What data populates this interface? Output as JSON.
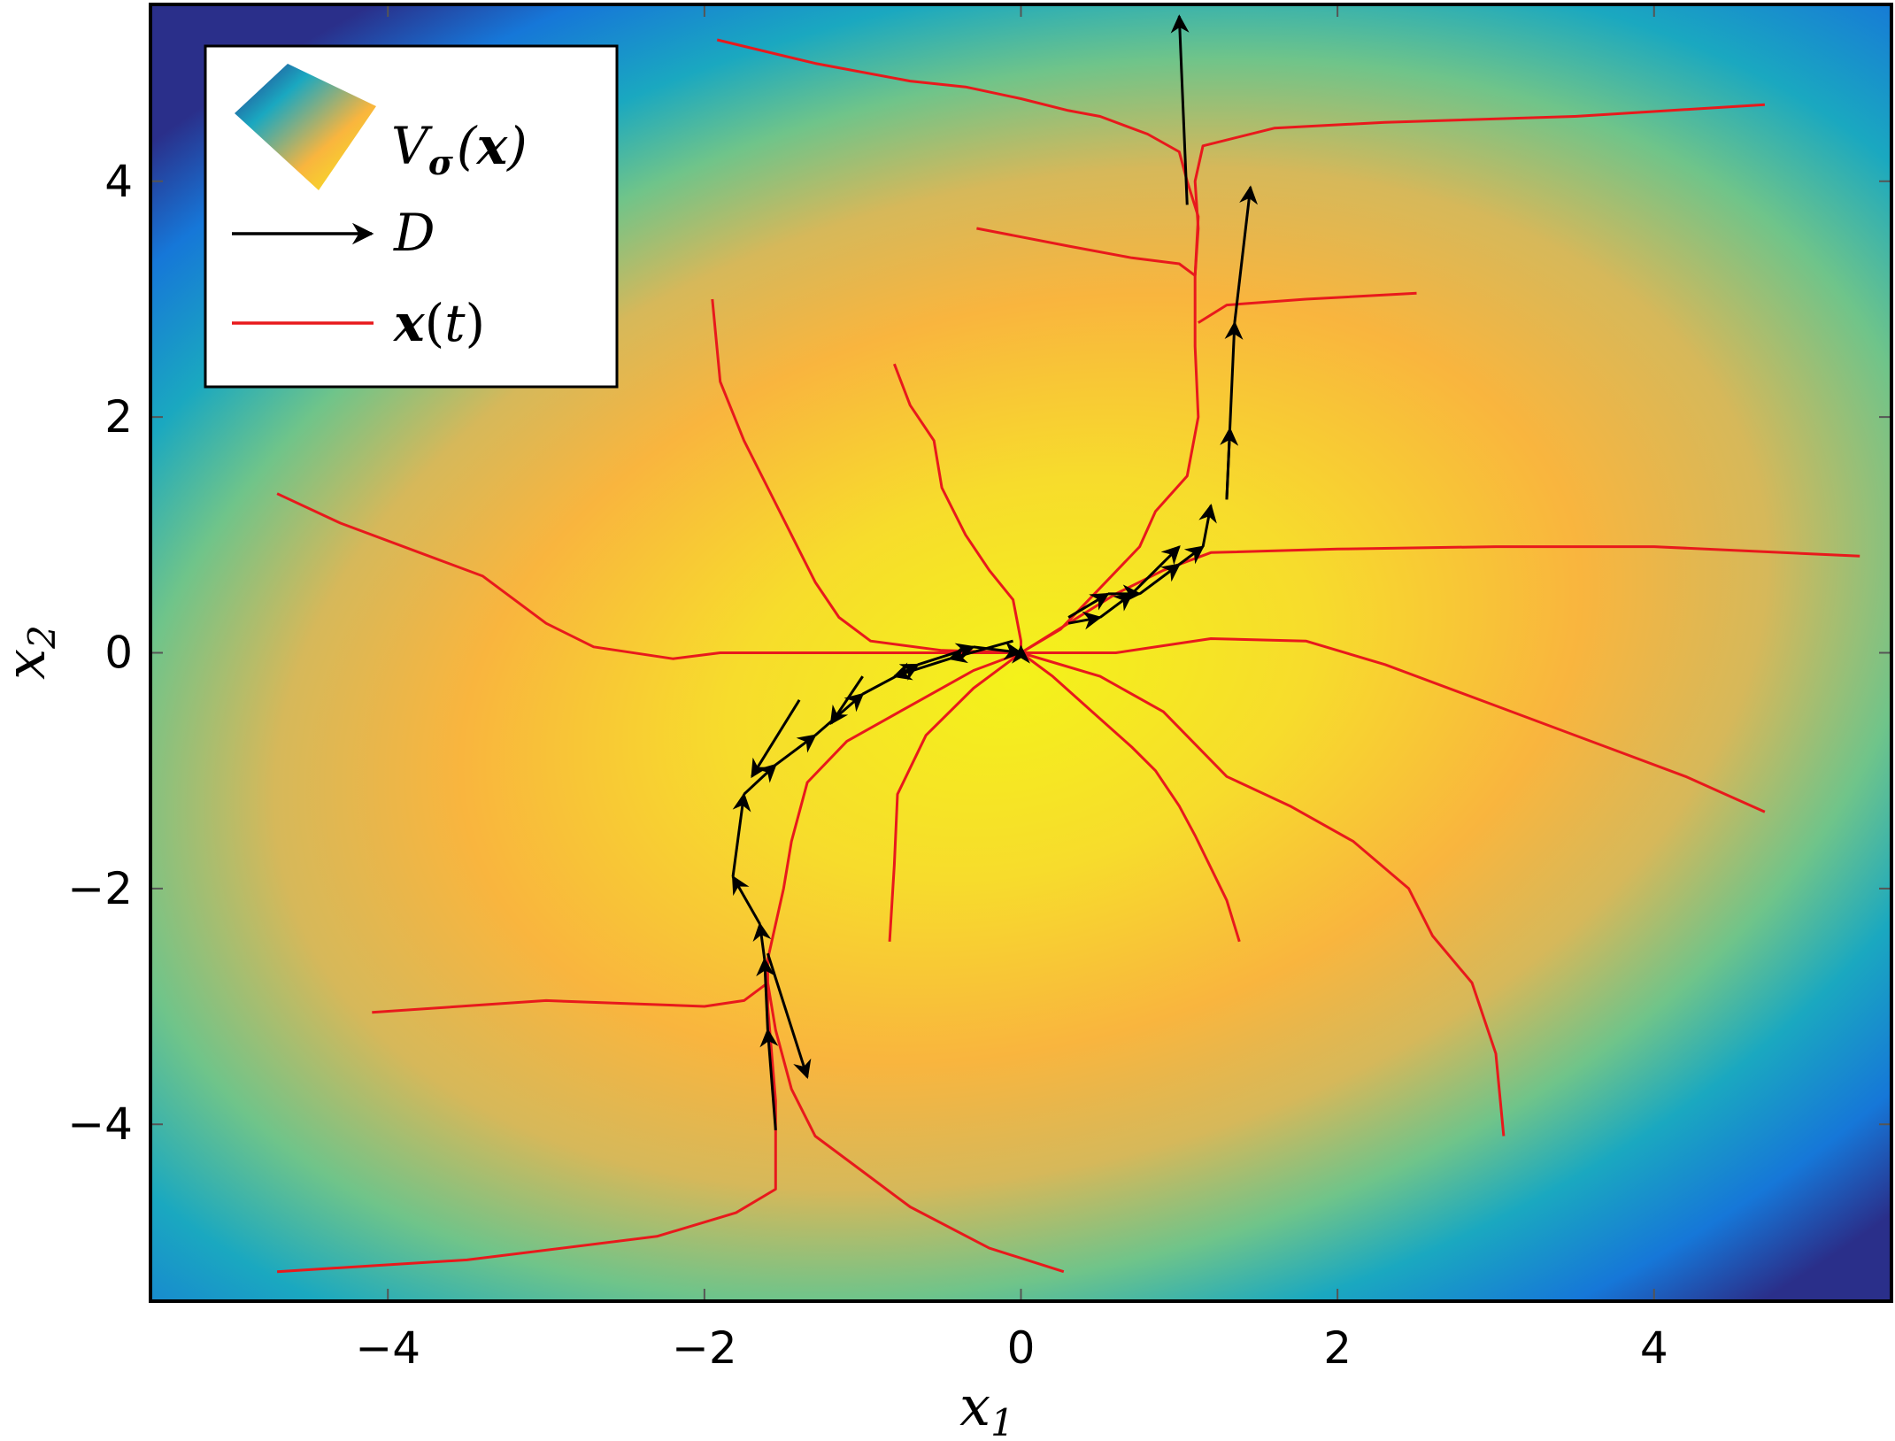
{
  "chart_data": {
    "type": "line",
    "title": "",
    "xlabel": "x",
    "xlabel_sub": "1",
    "ylabel": "x",
    "ylabel_sub": "2",
    "xlim": [
      -5.5,
      5.5
    ],
    "ylim": [
      -5.5,
      5.5
    ],
    "xticks": [
      -4,
      -2,
      0,
      2,
      4
    ],
    "yticks": [
      -4,
      -2,
      0,
      2,
      4
    ],
    "xtick_labels": [
      "−4",
      "−2",
      "0",
      "2",
      "4"
    ],
    "ytick_labels": [
      "−4",
      "−2",
      "0",
      "2",
      "4"
    ],
    "grid": false,
    "legend_position": "top-left",
    "legend": {
      "surface": {
        "symbol": "V",
        "sub": "σ",
        "args": [
          "(",
          "x",
          ")"
        ]
      },
      "arrows": {
        "symbol": "D"
      },
      "trajectory": {
        "symbol": "x",
        "args": [
          "(",
          "t",
          ")"
        ]
      }
    },
    "colors": {
      "trajectory": "#e8191c",
      "arrow": "#000000",
      "surface_peak": "#f4f21a",
      "surface_mid": "#f9b53e",
      "surface_low": "#1aa8c0",
      "surface_min": "#2a2f8a"
    },
    "surface": {
      "description_free": true,
      "center": [
        0,
        -0.2
      ],
      "peak_value": 1.0
    },
    "demonstrations": [
      {
        "name": "demo-1",
        "points": [
          [
            -1.55,
            -4.05
          ],
          [
            -1.6,
            -3.2
          ],
          [
            -1.62,
            -2.6
          ],
          [
            -1.65,
            -2.3
          ],
          [
            -1.82,
            -1.9
          ],
          [
            -1.75,
            -1.2
          ],
          [
            -1.55,
            -0.95
          ],
          [
            -1.3,
            -0.7
          ],
          [
            -1.0,
            -0.35
          ],
          [
            -0.65,
            -0.1
          ],
          [
            -0.3,
            0.05
          ],
          [
            0.0,
            0.0
          ]
        ]
      },
      {
        "name": "demo-2",
        "points": [
          [
            1.05,
            3.8
          ],
          [
            1.0,
            5.4
          ]
        ]
      },
      {
        "name": "demo-3",
        "points": [
          [
            1.3,
            1.3
          ],
          [
            1.35,
            2.8
          ],
          [
            1.45,
            3.95
          ]
        ]
      },
      {
        "name": "demo-4",
        "points": [
          [
            0.3,
            0.3
          ],
          [
            0.55,
            0.5
          ],
          [
            0.75,
            0.5
          ],
          [
            1.0,
            0.75
          ],
          [
            1.15,
            0.9
          ],
          [
            1.2,
            1.25
          ]
        ]
      },
      {
        "name": "demo-5",
        "points": [
          [
            0.3,
            0.25
          ],
          [
            0.5,
            0.3
          ],
          [
            0.7,
            0.5
          ],
          [
            1.0,
            0.9
          ]
        ]
      },
      {
        "name": "demo-6",
        "points": [
          [
            0.0,
            0.0
          ],
          [
            0.0,
            0.05
          ]
        ]
      },
      {
        "name": "demo-7",
        "points": [
          [
            1.3,
            1.3
          ],
          [
            1.32,
            1.9
          ]
        ]
      },
      {
        "name": "demo-8",
        "points": [
          [
            -0.05,
            0.1
          ],
          [
            -0.45,
            -0.05
          ],
          [
            -0.8,
            -0.2
          ]
        ]
      },
      {
        "name": "demo-9",
        "points": [
          [
            -1.0,
            -0.2
          ],
          [
            -1.2,
            -0.6
          ]
        ]
      },
      {
        "name": "demo-10",
        "points": [
          [
            -1.4,
            -0.4
          ],
          [
            -1.7,
            -1.05
          ]
        ]
      },
      {
        "name": "demo-11",
        "points": [
          [
            -1.6,
            -2.55
          ],
          [
            -1.35,
            -3.6
          ]
        ]
      }
    ],
    "trajectories": [
      {
        "name": "traj-1",
        "points": [
          [
            -1.92,
            5.2
          ],
          [
            -1.3,
            5.0
          ],
          [
            -0.7,
            4.85
          ],
          [
            -0.35,
            4.8
          ],
          [
            0.0,
            4.7
          ],
          [
            0.3,
            4.6
          ],
          [
            0.5,
            4.55
          ],
          [
            0.8,
            4.4
          ],
          [
            1.0,
            4.25
          ],
          [
            1.05,
            4.0
          ],
          [
            1.12,
            3.7
          ],
          [
            1.1,
            3.2
          ],
          [
            1.1,
            2.6
          ],
          [
            1.12,
            2.0
          ],
          [
            1.05,
            1.5
          ],
          [
            0.85,
            1.2
          ],
          [
            0.75,
            0.9
          ],
          [
            0.5,
            0.55
          ],
          [
            0.25,
            0.2
          ],
          [
            0.0,
            0.0
          ]
        ]
      },
      {
        "name": "traj-2",
        "points": [
          [
            4.7,
            4.65
          ],
          [
            3.5,
            4.55
          ],
          [
            2.3,
            4.5
          ],
          [
            1.6,
            4.45
          ],
          [
            1.15,
            4.3
          ],
          [
            1.1,
            4.0
          ],
          [
            1.12,
            3.6
          ],
          [
            1.1,
            3.2
          ]
        ]
      },
      {
        "name": "traj-3",
        "points": [
          [
            -0.28,
            3.6
          ],
          [
            0.3,
            3.45
          ],
          [
            0.7,
            3.35
          ],
          [
            1.0,
            3.3
          ],
          [
            1.1,
            3.2
          ]
        ]
      },
      {
        "name": "traj-4",
        "points": [
          [
            2.5,
            3.05
          ],
          [
            1.8,
            3.0
          ],
          [
            1.3,
            2.95
          ],
          [
            1.12,
            2.8
          ]
        ]
      },
      {
        "name": "traj-5",
        "points": [
          [
            -1.95,
            3.0
          ],
          [
            -1.9,
            2.3
          ],
          [
            -1.75,
            1.8
          ],
          [
            -1.6,
            1.4
          ],
          [
            -1.45,
            1.0
          ],
          [
            -1.3,
            0.6
          ],
          [
            -1.15,
            0.3
          ],
          [
            -0.95,
            0.1
          ],
          [
            -0.5,
            0.02
          ],
          [
            0.0,
            0.0
          ]
        ]
      },
      {
        "name": "traj-6",
        "points": [
          [
            -0.8,
            2.45
          ],
          [
            -0.7,
            2.1
          ],
          [
            -0.55,
            1.8
          ],
          [
            -0.5,
            1.4
          ],
          [
            -0.35,
            1.0
          ],
          [
            -0.2,
            0.7
          ],
          [
            -0.05,
            0.45
          ],
          [
            0.0,
            0.1
          ],
          [
            0.0,
            0.0
          ]
        ]
      },
      {
        "name": "traj-7",
        "points": [
          [
            -4.7,
            1.35
          ],
          [
            -4.3,
            1.1
          ],
          [
            -3.8,
            0.85
          ],
          [
            -3.4,
            0.65
          ],
          [
            -3.0,
            0.25
          ],
          [
            -2.7,
            0.05
          ],
          [
            -2.2,
            -0.05
          ],
          [
            -1.9,
            0.0
          ],
          [
            -1.0,
            0.0
          ],
          [
            0.0,
            0.0
          ]
        ]
      },
      {
        "name": "traj-8",
        "points": [
          [
            5.3,
            0.82
          ],
          [
            4.0,
            0.9
          ],
          [
            3.0,
            0.9
          ],
          [
            2.0,
            0.88
          ],
          [
            1.2,
            0.85
          ],
          [
            0.9,
            0.7
          ],
          [
            0.6,
            0.5
          ],
          [
            0.3,
            0.25
          ],
          [
            0.0,
            0.0
          ]
        ]
      },
      {
        "name": "traj-9",
        "points": [
          [
            4.7,
            -1.35
          ],
          [
            4.2,
            -1.05
          ],
          [
            3.7,
            -0.8
          ],
          [
            3.0,
            -0.45
          ],
          [
            2.3,
            -0.1
          ],
          [
            1.8,
            0.1
          ],
          [
            1.2,
            0.12
          ],
          [
            0.6,
            0.0
          ],
          [
            0.0,
            0.0
          ]
        ]
      },
      {
        "name": "traj-10",
        "points": [
          [
            1.38,
            -2.45
          ],
          [
            1.3,
            -2.1
          ],
          [
            1.1,
            -1.55
          ],
          [
            1.0,
            -1.3
          ],
          [
            0.85,
            -1.0
          ],
          [
            0.7,
            -0.8
          ],
          [
            0.45,
            -0.5
          ],
          [
            0.2,
            -0.2
          ],
          [
            0.0,
            0.0
          ]
        ]
      },
      {
        "name": "traj-11",
        "points": [
          [
            3.05,
            -4.1
          ],
          [
            3.0,
            -3.4
          ],
          [
            2.85,
            -2.8
          ],
          [
            2.6,
            -2.4
          ],
          [
            2.45,
            -2.0
          ],
          [
            2.1,
            -1.6
          ],
          [
            1.7,
            -1.3
          ],
          [
            1.3,
            -1.05
          ],
          [
            0.9,
            -0.5
          ],
          [
            0.5,
            -0.2
          ],
          [
            0.0,
            0.0
          ]
        ]
      },
      {
        "name": "traj-12",
        "points": [
          [
            -0.83,
            -2.45
          ],
          [
            -0.8,
            -1.8
          ],
          [
            -0.78,
            -1.2
          ],
          [
            -0.6,
            -0.7
          ],
          [
            -0.3,
            -0.3
          ],
          [
            0.0,
            0.0
          ]
        ]
      },
      {
        "name": "traj-13",
        "points": [
          [
            0.27,
            -5.25
          ],
          [
            -0.2,
            -5.05
          ],
          [
            -0.7,
            -4.7
          ],
          [
            -1.0,
            -4.4
          ],
          [
            -1.3,
            -4.1
          ],
          [
            -1.45,
            -3.7
          ],
          [
            -1.55,
            -3.2
          ],
          [
            -1.6,
            -2.8
          ]
        ]
      },
      {
        "name": "traj-14",
        "points": [
          [
            -4.1,
            -3.05
          ],
          [
            -3.0,
            -2.95
          ],
          [
            -2.0,
            -3.0
          ],
          [
            -1.75,
            -2.95
          ],
          [
            -1.6,
            -2.8
          ]
        ]
      },
      {
        "name": "traj-15",
        "points": [
          [
            -4.7,
            -5.25
          ],
          [
            -3.5,
            -5.15
          ],
          [
            -2.3,
            -4.95
          ],
          [
            -1.8,
            -4.75
          ],
          [
            -1.55,
            -4.55
          ],
          [
            -1.55,
            -3.8
          ],
          [
            -1.6,
            -3.0
          ],
          [
            -1.6,
            -2.6
          ],
          [
            -1.5,
            -2.0
          ],
          [
            -1.45,
            -1.6
          ],
          [
            -1.35,
            -1.1
          ],
          [
            -1.1,
            -0.75
          ],
          [
            -0.7,
            -0.45
          ],
          [
            -0.3,
            -0.15
          ],
          [
            0.0,
            0.0
          ]
        ]
      }
    ]
  }
}
